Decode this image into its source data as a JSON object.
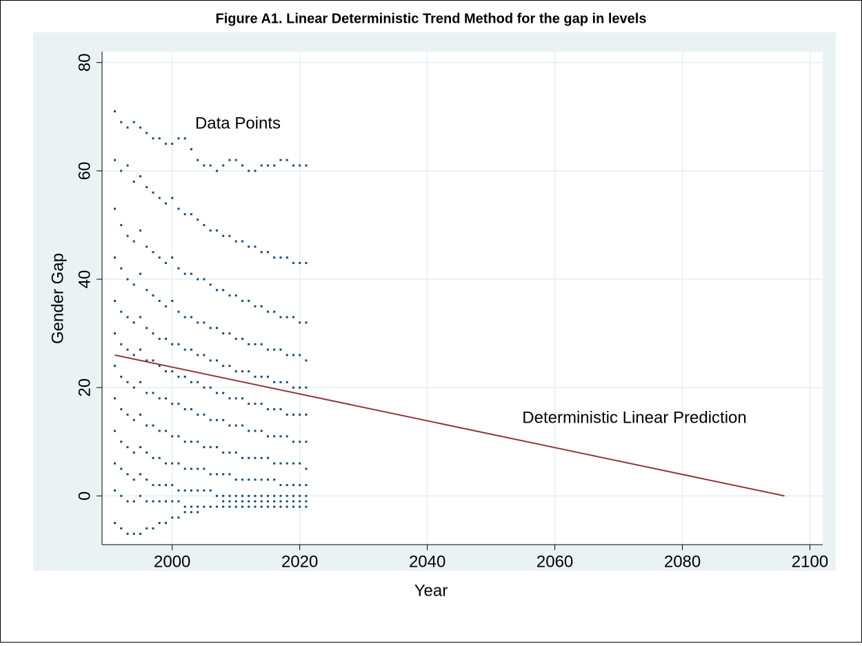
{
  "chart_data": {
    "type": "scatter",
    "title": "Figure A1. Linear Deterministic Trend Method for the gap in levels",
    "x_label": "Year",
    "y_label": "Gender Gap",
    "annotations": [
      "Data Points",
      "Deterministic Linear Prediction"
    ],
    "xlim": [
      1989,
      2102
    ],
    "ylim": [
      -9,
      82
    ],
    "xticks": [
      2000,
      2020,
      2040,
      2060,
      2080,
      2100
    ],
    "yticks": [
      0,
      20,
      40,
      60,
      80
    ],
    "grid": true,
    "x": [
      1991,
      1992,
      1993,
      1994,
      1995,
      1996,
      1997,
      1998,
      1999,
      2000,
      2001,
      2002,
      2003,
      2004,
      2005,
      2006,
      2007,
      2008,
      2009,
      2010,
      2011,
      2012,
      2013,
      2014,
      2015,
      2016,
      2017,
      2018,
      2019,
      2020,
      2021
    ],
    "color": "#1a476f",
    "series": [
      {
        "values": [
          71,
          69,
          68,
          69,
          68,
          67,
          66,
          66,
          65,
          65,
          66,
          66,
          64,
          62,
          61,
          61,
          60,
          61,
          62,
          62,
          61,
          60,
          60,
          61,
          61,
          61,
          62,
          62,
          61,
          61,
          61
        ]
      },
      {
        "values": [
          62,
          60,
          61,
          58,
          59,
          57,
          56,
          55,
          54,
          55,
          53,
          52,
          52,
          51,
          50,
          49,
          49,
          48,
          48,
          47,
          47,
          46,
          46,
          45,
          45,
          44,
          44,
          44,
          43,
          43,
          43
        ]
      },
      {
        "values": [
          53,
          50,
          48,
          47,
          49,
          46,
          45,
          44,
          43,
          44,
          42,
          41,
          41,
          40,
          40,
          39,
          38,
          38,
          37,
          37,
          36,
          36,
          35,
          35,
          34,
          34,
          33,
          33,
          33,
          32,
          32
        ]
      },
      {
        "values": [
          44,
          42,
          40,
          39,
          41,
          38,
          37,
          36,
          35,
          36,
          34,
          33,
          33,
          32,
          32,
          31,
          31,
          30,
          30,
          29,
          29,
          28,
          28,
          28,
          27,
          27,
          27,
          26,
          26,
          26,
          25
        ]
      },
      {
        "values": [
          36,
          34,
          33,
          32,
          33,
          31,
          30,
          29,
          29,
          28,
          28,
          27,
          27,
          26,
          26,
          25,
          25,
          24,
          24,
          23,
          23,
          23,
          22,
          22,
          22,
          21,
          21,
          21,
          20,
          20,
          20
        ]
      },
      {
        "values": [
          30,
          28,
          27,
          26,
          27,
          25,
          25,
          24,
          23,
          23,
          22,
          22,
          21,
          21,
          20,
          20,
          19,
          19,
          18,
          18,
          18,
          17,
          17,
          17,
          16,
          16,
          16,
          15,
          15,
          15,
          15
        ]
      },
      {
        "values": [
          24,
          22,
          21,
          20,
          21,
          19,
          19,
          18,
          18,
          17,
          17,
          16,
          16,
          15,
          15,
          14,
          14,
          14,
          13,
          13,
          13,
          12,
          12,
          12,
          11,
          11,
          11,
          11,
          10,
          10,
          10
        ]
      },
      {
        "values": [
          18,
          16,
          15,
          14,
          15,
          13,
          13,
          12,
          12,
          11,
          11,
          10,
          10,
          10,
          9,
          9,
          9,
          8,
          8,
          8,
          7,
          7,
          7,
          7,
          7,
          6,
          6,
          6,
          6,
          6,
          5
        ]
      },
      {
        "values": [
          12,
          10,
          9,
          8,
          9,
          8,
          7,
          7,
          6,
          6,
          6,
          5,
          5,
          5,
          5,
          4,
          4,
          4,
          4,
          3,
          3,
          3,
          3,
          3,
          3,
          3,
          2,
          2,
          2,
          2,
          2
        ]
      },
      {
        "values": [
          6,
          5,
          4,
          3,
          4,
          3,
          2,
          2,
          2,
          2,
          1,
          1,
          1,
          1,
          1,
          1,
          0,
          0,
          0,
          0,
          0,
          0,
          0,
          0,
          0,
          0,
          0,
          0,
          0,
          0,
          0
        ]
      },
      {
        "values": [
          1,
          0,
          -1,
          -1,
          0,
          -1,
          -1,
          -1,
          -1,
          -1,
          -1,
          -2,
          -2,
          -2,
          -2,
          -2,
          -2,
          -2,
          -2,
          -2,
          -2,
          -2,
          -2,
          -2,
          -2,
          -2,
          -2,
          -2,
          -2,
          -2,
          -2
        ]
      },
      {
        "values": [
          -5,
          -6,
          -7,
          -7,
          -7,
          -6,
          -6,
          -5,
          -5,
          -4,
          -4,
          -3,
          -3,
          -3,
          -2,
          -2,
          -2,
          -1,
          -1,
          -1,
          -1,
          -1,
          -1,
          -1,
          -1,
          -1,
          -1,
          -1,
          -1,
          -1,
          -1
        ]
      }
    ],
    "fit": {
      "type": "line",
      "x": [
        1991,
        2096
      ],
      "values": [
        26,
        0
      ],
      "color": "#90353b"
    }
  }
}
